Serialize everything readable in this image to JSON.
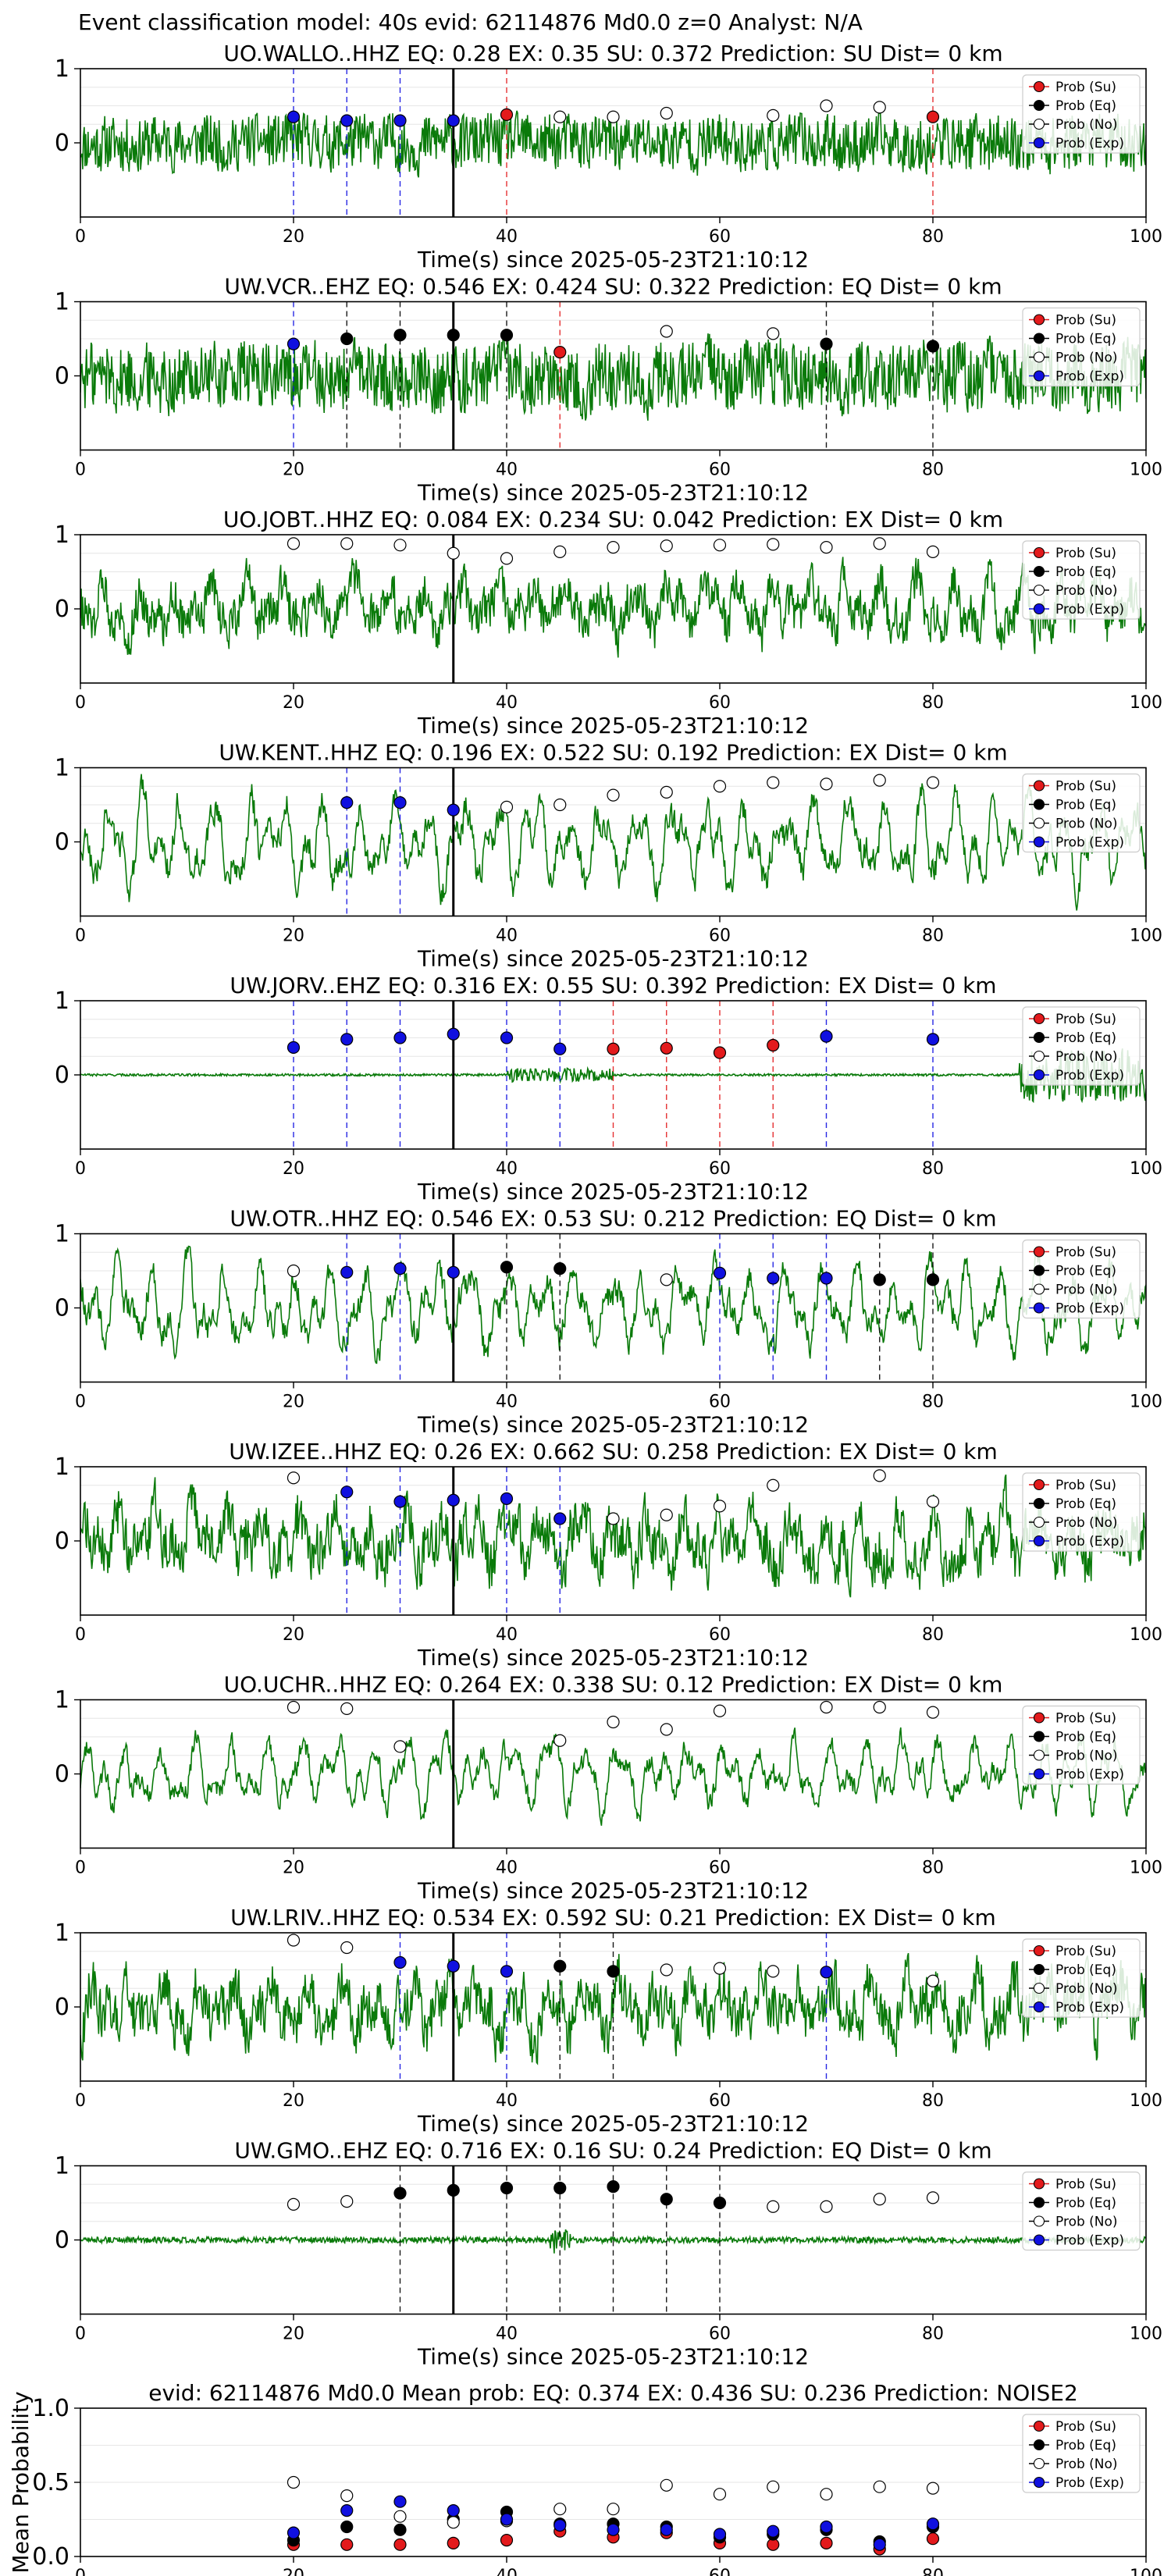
{
  "suptitle": "Event classification model: 40s evid: 62114876 Md0.0 z=0 Analyst: N/A",
  "colors": {
    "su": "#e31a1c",
    "eq": "#000000",
    "no": "#ffffff",
    "exp": "#1010e0",
    "waveform": "#0a7a0a",
    "pick_line": "#000000",
    "grid": "#e6e6e6"
  },
  "legend_labels": [
    "Prob (Su)",
    "Prob (Eq)",
    "Prob (No)",
    "Prob (Exp)"
  ],
  "x_ticks": [
    0,
    20,
    40,
    60,
    80,
    100
  ],
  "chart_data": [
    {
      "type": "scatter",
      "station": "UO.WALLO..HHZ",
      "title": "UO.WALLO..HHZ   EQ: 0.28  EX: 0.35  SU: 0.372   Prediction: SU    Dist= 0 km",
      "xlabel": "Time(s) since 2025-05-23T21:10:12",
      "xlim": [
        0,
        100
      ],
      "ylim": [
        -1,
        1
      ],
      "y_ticks": [
        0,
        1
      ],
      "pick_time": 35,
      "waveform": {
        "amplitude": 0.4,
        "style": "noise"
      },
      "points": [
        {
          "t": 20,
          "cls": "exp",
          "p": 0.35
        },
        {
          "t": 25,
          "cls": "exp",
          "p": 0.3
        },
        {
          "t": 30,
          "cls": "exp",
          "p": 0.3
        },
        {
          "t": 35,
          "cls": "exp",
          "p": 0.3
        },
        {
          "t": 40,
          "cls": "su",
          "p": 0.38
        },
        {
          "t": 45,
          "cls": "no",
          "p": 0.35
        },
        {
          "t": 50,
          "cls": "no",
          "p": 0.35
        },
        {
          "t": 55,
          "cls": "no",
          "p": 0.4
        },
        {
          "t": 65,
          "cls": "no",
          "p": 0.37
        },
        {
          "t": 70,
          "cls": "no",
          "p": 0.5
        },
        {
          "t": 75,
          "cls": "no",
          "p": 0.48
        },
        {
          "t": 80,
          "cls": "su",
          "p": 0.35
        }
      ]
    },
    {
      "type": "scatter",
      "station": "UW.VCR..EHZ",
      "title": "UW.VCR..EHZ   EQ: 0.546  EX: 0.424  SU: 0.322   Prediction: EQ    Dist= 0 km",
      "xlabel": "Time(s) since 2025-05-23T21:10:12",
      "xlim": [
        0,
        100
      ],
      "ylim": [
        -1,
        1
      ],
      "y_ticks": [
        0,
        1
      ],
      "pick_time": 35,
      "waveform": {
        "amplitude": 0.5,
        "style": "noise"
      },
      "points": [
        {
          "t": 20,
          "cls": "exp",
          "p": 0.43
        },
        {
          "t": 25,
          "cls": "eq",
          "p": 0.5
        },
        {
          "t": 30,
          "cls": "eq",
          "p": 0.55
        },
        {
          "t": 35,
          "cls": "eq",
          "p": 0.55
        },
        {
          "t": 40,
          "cls": "eq",
          "p": 0.55
        },
        {
          "t": 45,
          "cls": "su",
          "p": 0.32
        },
        {
          "t": 55,
          "cls": "no",
          "p": 0.6
        },
        {
          "t": 65,
          "cls": "no",
          "p": 0.57
        },
        {
          "t": 70,
          "cls": "eq",
          "p": 0.43
        },
        {
          "t": 80,
          "cls": "eq",
          "p": 0.4
        }
      ]
    },
    {
      "type": "scatter",
      "station": "UO.JOBT..HHZ",
      "title": "UO.JOBT..HHZ   EQ: 0.084  EX: 0.234  SU: 0.042   Prediction: EX    Dist= 0 km",
      "xlabel": "Time(s) since 2025-05-23T21:10:12",
      "xlim": [
        0,
        100
      ],
      "ylim": [
        -1,
        1
      ],
      "y_ticks": [
        0,
        1
      ],
      "pick_time": 35,
      "waveform": {
        "amplitude": 0.6,
        "style": "mixed"
      },
      "points": [
        {
          "t": 20,
          "cls": "no",
          "p": 0.88
        },
        {
          "t": 25,
          "cls": "no",
          "p": 0.88
        },
        {
          "t": 30,
          "cls": "no",
          "p": 0.86
        },
        {
          "t": 35,
          "cls": "no",
          "p": 0.75
        },
        {
          "t": 40,
          "cls": "no",
          "p": 0.68
        },
        {
          "t": 45,
          "cls": "no",
          "p": 0.77
        },
        {
          "t": 50,
          "cls": "no",
          "p": 0.83
        },
        {
          "t": 55,
          "cls": "no",
          "p": 0.85
        },
        {
          "t": 60,
          "cls": "no",
          "p": 0.86
        },
        {
          "t": 65,
          "cls": "no",
          "p": 0.87
        },
        {
          "t": 70,
          "cls": "no",
          "p": 0.83
        },
        {
          "t": 75,
          "cls": "no",
          "p": 0.88
        },
        {
          "t": 80,
          "cls": "no",
          "p": 0.77
        }
      ]
    },
    {
      "type": "scatter",
      "station": "UW.KENT..HHZ",
      "title": "UW.KENT..HHZ   EQ: 0.196  EX: 0.522  SU: 0.192   Prediction: EX    Dist= 0 km",
      "xlabel": "Time(s) since 2025-05-23T21:10:12",
      "xlim": [
        0,
        100
      ],
      "ylim": [
        -1,
        1
      ],
      "y_ticks": [
        0,
        1
      ],
      "pick_time": 35,
      "waveform": {
        "amplitude": 0.75,
        "style": "smooth"
      },
      "points": [
        {
          "t": 25,
          "cls": "exp",
          "p": 0.53
        },
        {
          "t": 30,
          "cls": "exp",
          "p": 0.53
        },
        {
          "t": 35,
          "cls": "exp",
          "p": 0.43
        },
        {
          "t": 40,
          "cls": "no",
          "p": 0.47
        },
        {
          "t": 45,
          "cls": "no",
          "p": 0.5
        },
        {
          "t": 50,
          "cls": "no",
          "p": 0.63
        },
        {
          "t": 55,
          "cls": "no",
          "p": 0.67
        },
        {
          "t": 60,
          "cls": "no",
          "p": 0.75
        },
        {
          "t": 65,
          "cls": "no",
          "p": 0.8
        },
        {
          "t": 70,
          "cls": "no",
          "p": 0.78
        },
        {
          "t": 75,
          "cls": "no",
          "p": 0.83
        },
        {
          "t": 80,
          "cls": "no",
          "p": 0.8
        }
      ]
    },
    {
      "type": "scatter",
      "station": "UW.JORV..EHZ",
      "title": "UW.JORV..EHZ   EQ: 0.316  EX: 0.55  SU: 0.392   Prediction: EX    Dist= 0 km",
      "xlabel": "Time(s) since 2025-05-23T21:10:12",
      "xlim": [
        0,
        100
      ],
      "ylim": [
        -1,
        1
      ],
      "y_ticks": [
        0,
        1
      ],
      "pick_time": 35,
      "waveform": {
        "amplitude": 0.06,
        "style": "quiet-burst"
      },
      "points": [
        {
          "t": 20,
          "cls": "exp",
          "p": 0.37
        },
        {
          "t": 25,
          "cls": "exp",
          "p": 0.48
        },
        {
          "t": 30,
          "cls": "exp",
          "p": 0.5
        },
        {
          "t": 35,
          "cls": "exp",
          "p": 0.55
        },
        {
          "t": 40,
          "cls": "exp",
          "p": 0.5
        },
        {
          "t": 45,
          "cls": "exp",
          "p": 0.35
        },
        {
          "t": 50,
          "cls": "su",
          "p": 0.35
        },
        {
          "t": 55,
          "cls": "su",
          "p": 0.36
        },
        {
          "t": 60,
          "cls": "su",
          "p": 0.3
        },
        {
          "t": 65,
          "cls": "su",
          "p": 0.4
        },
        {
          "t": 70,
          "cls": "exp",
          "p": 0.52
        },
        {
          "t": 80,
          "cls": "exp",
          "p": 0.48
        }
      ]
    },
    {
      "type": "scatter",
      "station": "UW.OTR..HHZ",
      "title": "UW.OTR..HHZ   EQ: 0.546  EX: 0.53  SU: 0.212   Prediction: EQ    Dist= 0 km",
      "xlabel": "Time(s) since 2025-05-23T21:10:12",
      "xlim": [
        0,
        100
      ],
      "ylim": [
        -1,
        1
      ],
      "y_ticks": [
        0,
        1
      ],
      "pick_time": 35,
      "waveform": {
        "amplitude": 0.7,
        "style": "smooth"
      },
      "points": [
        {
          "t": 20,
          "cls": "no",
          "p": 0.5
        },
        {
          "t": 25,
          "cls": "exp",
          "p": 0.48
        },
        {
          "t": 30,
          "cls": "exp",
          "p": 0.53
        },
        {
          "t": 35,
          "cls": "exp",
          "p": 0.48
        },
        {
          "t": 40,
          "cls": "eq",
          "p": 0.55
        },
        {
          "t": 45,
          "cls": "eq",
          "p": 0.53
        },
        {
          "t": 55,
          "cls": "no",
          "p": 0.38
        },
        {
          "t": 60,
          "cls": "exp",
          "p": 0.47
        },
        {
          "t": 65,
          "cls": "exp",
          "p": 0.4
        },
        {
          "t": 70,
          "cls": "exp",
          "p": 0.4
        },
        {
          "t": 75,
          "cls": "eq",
          "p": 0.38
        },
        {
          "t": 80,
          "cls": "eq",
          "p": 0.38
        }
      ]
    },
    {
      "type": "scatter",
      "station": "UW.IZEE..HHZ",
      "title": "UW.IZEE..HHZ   EQ: 0.26  EX: 0.662  SU: 0.258   Prediction: EX    Dist= 0 km",
      "xlabel": "Time(s) since 2025-05-23T21:10:12",
      "xlim": [
        0,
        100
      ],
      "ylim": [
        -1,
        1
      ],
      "y_ticks": [
        0,
        1
      ],
      "pick_time": 35,
      "waveform": {
        "amplitude": 0.7,
        "style": "mixed"
      },
      "points": [
        {
          "t": 20,
          "cls": "no",
          "p": 0.85
        },
        {
          "t": 25,
          "cls": "exp",
          "p": 0.66
        },
        {
          "t": 30,
          "cls": "exp",
          "p": 0.53
        },
        {
          "t": 35,
          "cls": "exp",
          "p": 0.55
        },
        {
          "t": 40,
          "cls": "exp",
          "p": 0.57
        },
        {
          "t": 45,
          "cls": "exp",
          "p": 0.3
        },
        {
          "t": 50,
          "cls": "no",
          "p": 0.3
        },
        {
          "t": 55,
          "cls": "no",
          "p": 0.35
        },
        {
          "t": 60,
          "cls": "no",
          "p": 0.47
        },
        {
          "t": 65,
          "cls": "no",
          "p": 0.75
        },
        {
          "t": 75,
          "cls": "no",
          "p": 0.88
        },
        {
          "t": 80,
          "cls": "no",
          "p": 0.53
        }
      ]
    },
    {
      "type": "scatter",
      "station": "UO.UCHR..HHZ",
      "title": "UO.UCHR..HHZ   EQ: 0.264  EX: 0.338  SU: 0.12   Prediction: EX    Dist= 0 km",
      "xlabel": "Time(s) since 2025-05-23T21:10:12",
      "xlim": [
        0,
        100
      ],
      "ylim": [
        -1,
        1
      ],
      "y_ticks": [
        0,
        1
      ],
      "pick_time": 35,
      "waveform": {
        "amplitude": 0.55,
        "style": "smooth"
      },
      "points": [
        {
          "t": 20,
          "cls": "no",
          "p": 0.9
        },
        {
          "t": 25,
          "cls": "no",
          "p": 0.88
        },
        {
          "t": 30,
          "cls": "no",
          "p": 0.37
        },
        {
          "t": 45,
          "cls": "no",
          "p": 0.45
        },
        {
          "t": 50,
          "cls": "no",
          "p": 0.7
        },
        {
          "t": 55,
          "cls": "no",
          "p": 0.6
        },
        {
          "t": 60,
          "cls": "no",
          "p": 0.85
        },
        {
          "t": 70,
          "cls": "no",
          "p": 0.9
        },
        {
          "t": 75,
          "cls": "no",
          "p": 0.9
        },
        {
          "t": 80,
          "cls": "no",
          "p": 0.83
        }
      ]
    },
    {
      "type": "scatter",
      "station": "UW.LRIV..HHZ",
      "title": "UW.LRIV..HHZ   EQ: 0.534  EX: 0.592  SU: 0.21   Prediction: EX    Dist= 0 km",
      "xlabel": "Time(s) since 2025-05-23T21:10:12",
      "xlim": [
        0,
        100
      ],
      "ylim": [
        -1,
        1
      ],
      "y_ticks": [
        0,
        1
      ],
      "pick_time": 35,
      "waveform": {
        "amplitude": 0.7,
        "style": "mixed"
      },
      "points": [
        {
          "t": 20,
          "cls": "no",
          "p": 0.9
        },
        {
          "t": 25,
          "cls": "no",
          "p": 0.8
        },
        {
          "t": 30,
          "cls": "exp",
          "p": 0.6
        },
        {
          "t": 35,
          "cls": "exp",
          "p": 0.55
        },
        {
          "t": 40,
          "cls": "exp",
          "p": 0.48
        },
        {
          "t": 45,
          "cls": "eq",
          "p": 0.55
        },
        {
          "t": 50,
          "cls": "eq",
          "p": 0.48
        },
        {
          "t": 55,
          "cls": "no",
          "p": 0.5
        },
        {
          "t": 60,
          "cls": "no",
          "p": 0.52
        },
        {
          "t": 65,
          "cls": "no",
          "p": 0.48
        },
        {
          "t": 70,
          "cls": "exp",
          "p": 0.47
        },
        {
          "t": 80,
          "cls": "no",
          "p": 0.35
        }
      ]
    },
    {
      "type": "scatter",
      "station": "UW.GMO..EHZ",
      "title": "UW.GMO..EHZ   EQ: 0.716  EX: 0.16  SU: 0.24   Prediction: EQ    Dist= 0 km",
      "xlabel": "Time(s) since 2025-05-23T21:10:12",
      "xlim": [
        0,
        100
      ],
      "ylim": [
        -1,
        1
      ],
      "y_ticks": [
        0,
        1
      ],
      "pick_time": 35,
      "waveform": {
        "amplitude": 0.05,
        "style": "flat"
      },
      "points": [
        {
          "t": 20,
          "cls": "no",
          "p": 0.48
        },
        {
          "t": 25,
          "cls": "no",
          "p": 0.52
        },
        {
          "t": 30,
          "cls": "eq",
          "p": 0.63
        },
        {
          "t": 35,
          "cls": "eq",
          "p": 0.67
        },
        {
          "t": 40,
          "cls": "eq",
          "p": 0.7
        },
        {
          "t": 45,
          "cls": "eq",
          "p": 0.7
        },
        {
          "t": 50,
          "cls": "eq",
          "p": 0.72
        },
        {
          "t": 55,
          "cls": "eq",
          "p": 0.55
        },
        {
          "t": 60,
          "cls": "eq",
          "p": 0.5
        },
        {
          "t": 65,
          "cls": "no",
          "p": 0.45
        },
        {
          "t": 70,
          "cls": "no",
          "p": 0.45
        },
        {
          "t": 75,
          "cls": "no",
          "p": 0.55
        },
        {
          "t": 80,
          "cls": "no",
          "p": 0.57
        }
      ]
    },
    {
      "type": "scatter",
      "title": "evid: 62114876  Md0.0   Mean prob:   EQ: 0.374  EX: 0.436  SU: 0.236   Prediction: NOISE2",
      "xlabel": "",
      "ylabel": "Mean Probability",
      "xlim": [
        0,
        100
      ],
      "ylim": [
        0,
        1
      ],
      "y_ticks": [
        0.0,
        0.5,
        1.0
      ],
      "y_tick_labels": [
        "0.0",
        "0.5",
        "1.0"
      ],
      "x": [
        20,
        25,
        30,
        35,
        40,
        45,
        50,
        55,
        60,
        65,
        70,
        75,
        80
      ],
      "series": [
        {
          "name": "Prob (Su)",
          "cls": "su",
          "values": [
            0.08,
            0.08,
            0.08,
            0.09,
            0.11,
            0.17,
            0.13,
            0.16,
            0.09,
            0.08,
            0.09,
            0.05,
            0.12
          ]
        },
        {
          "name": "Prob (Eq)",
          "cls": "eq",
          "values": [
            0.11,
            0.2,
            0.18,
            0.25,
            0.3,
            0.22,
            0.22,
            0.2,
            0.13,
            0.15,
            0.18,
            0.1,
            0.2
          ]
        },
        {
          "name": "Prob (No)",
          "cls": "no",
          "values": [
            0.5,
            0.41,
            0.27,
            0.23,
            0.24,
            0.32,
            0.32,
            0.48,
            0.42,
            0.47,
            0.42,
            0.47,
            0.46
          ]
        },
        {
          "name": "Prob (Exp)",
          "cls": "exp",
          "values": [
            0.16,
            0.31,
            0.37,
            0.31,
            0.25,
            0.21,
            0.18,
            0.18,
            0.15,
            0.17,
            0.2,
            0.08,
            0.22
          ]
        }
      ]
    }
  ]
}
